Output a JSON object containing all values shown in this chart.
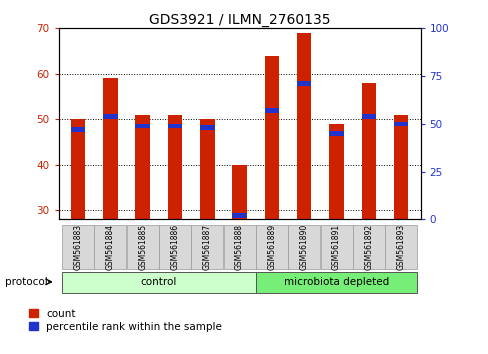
{
  "title": "GDS3921 / ILMN_2760135",
  "samples": [
    "GSM561883",
    "GSM561884",
    "GSM561885",
    "GSM561886",
    "GSM561887",
    "GSM561888",
    "GSM561889",
    "GSM561890",
    "GSM561891",
    "GSM561892",
    "GSM561893"
  ],
  "count_values": [
    50,
    59,
    51,
    51,
    50,
    40,
    64,
    69,
    49,
    58,
    51
  ],
  "percentile_values": [
    47,
    54,
    49,
    49,
    48,
    2,
    57,
    71,
    45,
    54,
    50
  ],
  "group_labels": [
    "control",
    "microbiota depleted"
  ],
  "group_sizes": [
    6,
    5
  ],
  "ylim_left": [
    28,
    70
  ],
  "ylim_right": [
    0,
    100
  ],
  "yticks_left": [
    30,
    40,
    50,
    60,
    70
  ],
  "yticks_right": [
    0,
    25,
    50,
    75,
    100
  ],
  "bar_color": "#cc2200",
  "percentile_color": "#2233cc",
  "bar_width": 0.45,
  "bg_color": "#d8d8d8",
  "control_color": "#ccffcc",
  "microbiota_color": "#77ee77",
  "title_fontsize": 10
}
